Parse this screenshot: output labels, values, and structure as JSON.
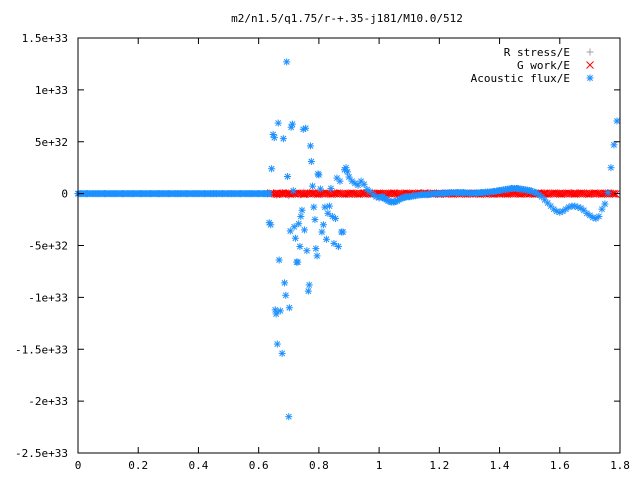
{
  "chart_data": {
    "type": "scatter",
    "title": "m2/n1.5/q1.75/r-+.35-j181/M10.0/512",
    "xlabel": "",
    "ylabel": "",
    "xlim": [
      0,
      1.8
    ],
    "ylim": [
      -2.5e+33,
      1.5e+33
    ],
    "x_ticks": [
      {
        "value": 0,
        "label": "0"
      },
      {
        "value": 0.2,
        "label": "0.2"
      },
      {
        "value": 0.4,
        "label": "0.4"
      },
      {
        "value": 0.6,
        "label": "0.6"
      },
      {
        "value": 0.8,
        "label": "0.8"
      },
      {
        "value": 1.0,
        "label": "1"
      },
      {
        "value": 1.2,
        "label": "1.2"
      },
      {
        "value": 1.4,
        "label": "1.4"
      },
      {
        "value": 1.6,
        "label": "1.6"
      },
      {
        "value": 1.8,
        "label": "1.8"
      }
    ],
    "y_ticks": [
      {
        "value": 1.5e+33,
        "label": "1.5e+33"
      },
      {
        "value": 1e+33,
        "label": "1e+33"
      },
      {
        "value": 5e+32,
        "label": "5e+32"
      },
      {
        "value": 0,
        "label": "0"
      },
      {
        "value": -5e+32,
        "label": "-5e+32"
      },
      {
        "value": -1e+33,
        "label": "-1e+33"
      },
      {
        "value": -1.5e+33,
        "label": "-1.5e+33"
      },
      {
        "value": -2e+33,
        "label": "-2e+33"
      },
      {
        "value": -2.5e+33,
        "label": "-2.5e+33"
      }
    ],
    "grid": false,
    "legend_position": "top-right",
    "series": [
      {
        "name": "R stress/E",
        "marker": "+",
        "color": "#a0a0a0",
        "points": [
          [
            0.64,
            0
          ],
          [
            0.66,
            -1.5e+31
          ],
          [
            0.68,
            1e+31
          ],
          [
            0.7,
            -2e+31
          ],
          [
            0.72,
            0
          ],
          [
            0.75,
            1.5e+31
          ],
          [
            0.8,
            -1e+31
          ],
          [
            0.9,
            5e+30
          ],
          [
            1.0,
            -5e+30
          ],
          [
            1.2,
            0
          ],
          [
            1.4,
            0
          ],
          [
            1.6,
            0
          ],
          [
            1.76,
            0
          ]
        ]
      },
      {
        "name": "G work/E",
        "marker": "x",
        "color": "#ff0000",
        "points": [
          [
            0.64,
            0
          ],
          [
            0.66,
            5e+30
          ],
          [
            0.68,
            -5e+30
          ],
          [
            0.7,
            5e+30
          ],
          [
            0.72,
            0
          ],
          [
            0.75,
            -5e+30
          ],
          [
            0.78,
            5e+30
          ],
          [
            0.8,
            0
          ],
          [
            0.85,
            5e+30
          ],
          [
            0.9,
            -5e+30
          ],
          [
            0.95,
            5e+30
          ],
          [
            1.0,
            0
          ],
          [
            1.05,
            5e+30
          ],
          [
            1.1,
            0
          ],
          [
            1.15,
            5e+30
          ],
          [
            1.2,
            0
          ],
          [
            1.25,
            5e+30
          ],
          [
            1.3,
            0
          ],
          [
            1.35,
            5e+30
          ],
          [
            1.4,
            0
          ],
          [
            1.45,
            5e+30
          ],
          [
            1.5,
            0
          ],
          [
            1.55,
            5e+30
          ],
          [
            1.6,
            0
          ],
          [
            1.65,
            5e+30
          ],
          [
            1.7,
            0
          ],
          [
            1.75,
            5e+30
          ],
          [
            1.78,
            0
          ]
        ]
      },
      {
        "name": "Acoustic flux/E",
        "marker": "*",
        "color": "#1e90ff",
        "points": [
          [
            0.0,
            0
          ],
          [
            0.03,
            0
          ],
          [
            0.06,
            0
          ],
          [
            0.09,
            0
          ],
          [
            0.12,
            0
          ],
          [
            0.15,
            0
          ],
          [
            0.18,
            0
          ],
          [
            0.21,
            0
          ],
          [
            0.24,
            0
          ],
          [
            0.27,
            0
          ],
          [
            0.3,
            0
          ],
          [
            0.33,
            0
          ],
          [
            0.36,
            0
          ],
          [
            0.39,
            0
          ],
          [
            0.42,
            0
          ],
          [
            0.45,
            0
          ],
          [
            0.48,
            0
          ],
          [
            0.51,
            0
          ],
          [
            0.54,
            0
          ],
          [
            0.57,
            0
          ],
          [
            0.6,
            0
          ],
          [
            0.62,
            0
          ],
          [
            0.635,
            -2.8e+32
          ],
          [
            0.64,
            -3e+32
          ],
          [
            0.643,
            2.4e+32
          ],
          [
            0.648,
            5.7e+32
          ],
          [
            0.652,
            5.4e+32
          ],
          [
            0.655,
            -1.12e+33
          ],
          [
            0.658,
            -1.16e+33
          ],
          [
            0.662,
            -1.45e+33
          ],
          [
            0.665,
            6.8e+32
          ],
          [
            0.668,
            -6.4e+32
          ],
          [
            0.672,
            -1.13e+33
          ],
          [
            0.678,
            -1.54e+33
          ],
          [
            0.682,
            5.3e+32
          ],
          [
            0.686,
            -8.6e+32
          ],
          [
            0.69,
            -9.8e+32
          ],
          [
            0.693,
            1.27e+33
          ],
          [
            0.696,
            1.65e+32
          ],
          [
            0.7,
            -2.15e+33
          ],
          [
            0.702,
            -1.1e+33
          ],
          [
            0.705,
            -3.6e+32
          ],
          [
            0.708,
            6.4e+32
          ],
          [
            0.712,
            6.7e+32
          ],
          [
            0.715,
            2.8e+31
          ],
          [
            0.718,
            -3.2e+32
          ],
          [
            0.722,
            -4.3e+32
          ],
          [
            0.726,
            -6.6e+32
          ],
          [
            0.73,
            -6.6e+32
          ],
          [
            0.733,
            -2.9e+32
          ],
          [
            0.737,
            -5.1e+32
          ],
          [
            0.74,
            -2.2e+32
          ],
          [
            0.744,
            -1.6e+32
          ],
          [
            0.748,
            6.2e+32
          ],
          [
            0.752,
            -3.5e+32
          ],
          [
            0.756,
            6.3e+32
          ],
          [
            0.76,
            -5.5e+32
          ],
          [
            0.765,
            -9.4e+32
          ],
          [
            0.768,
            -8.8e+32
          ],
          [
            0.772,
            4.6e+32
          ],
          [
            0.775,
            3.1e+32
          ],
          [
            0.779,
            7.2e+31
          ],
          [
            0.783,
            -1.3e+32
          ],
          [
            0.787,
            -2.5e+32
          ],
          [
            0.79,
            -5.3e+32
          ],
          [
            0.794,
            -6e+32
          ],
          [
            0.797,
            1.9e+32
          ],
          [
            0.8,
            1.8e+32
          ],
          [
            0.805,
            4.5e+31
          ],
          [
            0.81,
            -3.7e+32
          ],
          [
            0.815,
            -3e+32
          ],
          [
            0.82,
            -1.3e+32
          ],
          [
            0.825,
            -4.4e+32
          ],
          [
            0.83,
            -1.9e+32
          ],
          [
            0.835,
            -1.2e+32
          ],
          [
            0.84,
            5e+31
          ],
          [
            0.845,
            -2.2e+32
          ],
          [
            0.85,
            -4.8e+32
          ],
          [
            0.855,
            -2.4e+32
          ],
          [
            0.86,
            1.5e+32
          ],
          [
            0.865,
            -5.1e+32
          ],
          [
            0.87,
            1.2e+32
          ],
          [
            0.875,
            -3.7e+32
          ],
          [
            0.88,
            -3.7e+32
          ],
          [
            0.885,
            2.3e+32
          ],
          [
            0.89,
            2.5e+32
          ],
          [
            0.895,
            2.1e+32
          ],
          [
            0.9,
            1.6e+32
          ],
          [
            0.91,
            1.2e+32
          ],
          [
            0.92,
            1e+32
          ],
          [
            0.93,
            8e+31
          ],
          [
            0.94,
            1.2e+32
          ],
          [
            0.95,
            9e+31
          ],
          [
            0.96,
            4e+31
          ],
          [
            0.97,
            2e+31
          ],
          [
            0.98,
            -1e+31
          ],
          [
            0.99,
            -3e+31
          ],
          [
            1.0,
            -4e+31
          ],
          [
            1.01,
            -3e+31
          ],
          [
            1.02,
            -5e+31
          ],
          [
            1.03,
            -7e+31
          ],
          [
            1.04,
            -8e+31
          ],
          [
            1.05,
            -8e+31
          ],
          [
            1.06,
            -7e+31
          ],
          [
            1.07,
            -5e+31
          ],
          [
            1.08,
            -4e+31
          ],
          [
            1.09,
            -3e+31
          ],
          [
            1.1,
            -3e+31
          ],
          [
            1.12,
            -2e+31
          ],
          [
            1.14,
            -1e+31
          ],
          [
            1.16,
            -1e+31
          ],
          [
            1.18,
            0
          ],
          [
            1.2,
            0
          ],
          [
            1.22,
            5e+30
          ],
          [
            1.24,
            1e+31
          ],
          [
            1.26,
            1e+31
          ],
          [
            1.28,
            1e+31
          ],
          [
            1.3,
            5e+30
          ],
          [
            1.32,
            5e+30
          ],
          [
            1.34,
            1e+31
          ],
          [
            1.36,
            1.5e+31
          ],
          [
            1.38,
            2e+31
          ],
          [
            1.4,
            3e+31
          ],
          [
            1.42,
            4e+31
          ],
          [
            1.44,
            5e+31
          ],
          [
            1.46,
            5e+31
          ],
          [
            1.48,
            4e+31
          ],
          [
            1.5,
            3e+31
          ],
          [
            1.52,
            1e+31
          ],
          [
            1.53,
            -1e+31
          ],
          [
            1.54,
            -3e+31
          ],
          [
            1.55,
            -6e+31
          ],
          [
            1.56,
            -9e+31
          ],
          [
            1.57,
            -1.2e+32
          ],
          [
            1.58,
            -1.5e+32
          ],
          [
            1.59,
            -1.7e+32
          ],
          [
            1.6,
            -1.8e+32
          ],
          [
            1.61,
            -1.7e+32
          ],
          [
            1.62,
            -1.5e+32
          ],
          [
            1.63,
            -1.3e+32
          ],
          [
            1.64,
            -1.2e+32
          ],
          [
            1.65,
            -1.2e+32
          ],
          [
            1.66,
            -1.3e+32
          ],
          [
            1.67,
            -1.4e+32
          ],
          [
            1.68,
            -1.6e+32
          ],
          [
            1.69,
            -1.9e+32
          ],
          [
            1.7,
            -2.1e+32
          ],
          [
            1.71,
            -2.3e+32
          ],
          [
            1.72,
            -2.4e+32
          ],
          [
            1.73,
            -2.2e+32
          ],
          [
            1.74,
            -1.5e+32
          ],
          [
            1.75,
            -1e+32
          ],
          [
            1.76,
            1e+31
          ],
          [
            1.77,
            2.5e+32
          ],
          [
            1.78,
            4.7e+32
          ],
          [
            1.79,
            7e+32
          ]
        ]
      }
    ]
  }
}
